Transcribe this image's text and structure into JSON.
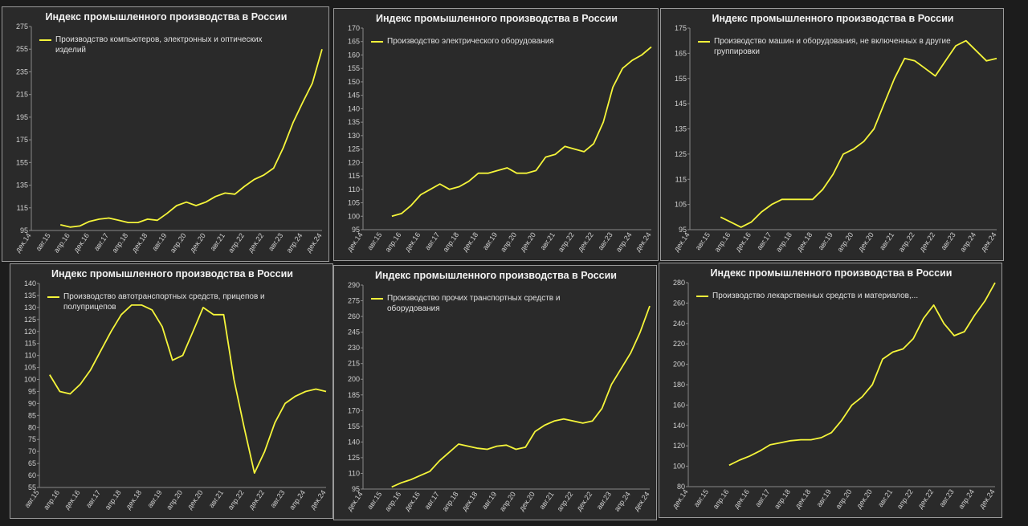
{
  "chart_data": [
    {
      "type": "line",
      "title": "Индекс промышленного производства в России",
      "categories": [
        "дек.14",
        null,
        "авг.15",
        null,
        "апр.16",
        null,
        "дек.16",
        null,
        "авг.17",
        null,
        "апр.18",
        null,
        "дек.18",
        null,
        "авг.19",
        null,
        "апр.20",
        null,
        "дек.20",
        null,
        "авг.21",
        null,
        "апр.22",
        null,
        "дек.22",
        null,
        "авг.23",
        null,
        "апр.24",
        null,
        "дек.24"
      ],
      "series": [
        {
          "name": "Производство компьютеров, электронных и оптических изделий",
          "color": "#f5f53a",
          "values": [
            null,
            null,
            null,
            100,
            98,
            99,
            103,
            105,
            106,
            104,
            102,
            102,
            105,
            104,
            110,
            117,
            120,
            117,
            120,
            125,
            128,
            127,
            134,
            140,
            144,
            150,
            168,
            190,
            208,
            225,
            255
          ]
        }
      ],
      "ylim": [
        95,
        275
      ],
      "yticks": [
        95,
        115,
        135,
        155,
        175,
        195,
        215,
        235,
        255,
        275
      ],
      "grid": false
    },
    {
      "type": "line",
      "title": "Индекс промышленного производства в России",
      "categories": [
        "дек.14",
        null,
        "авг.15",
        null,
        "апр.16",
        null,
        "дек.16",
        null,
        "авг.17",
        null,
        "апр.18",
        null,
        "дек.18",
        null,
        "авг.19",
        null,
        "апр.20",
        null,
        "дек.20",
        null,
        "авг.21",
        null,
        "апр.22",
        null,
        "дек.22",
        null,
        "авг.23",
        null,
        "апр.24",
        null,
        "дек.24"
      ],
      "series": [
        {
          "name": "Производство электрического оборудования",
          "color": "#f5f53a",
          "values": [
            null,
            null,
            null,
            100,
            101,
            104,
            108,
            110,
            112,
            110,
            111,
            113,
            116,
            116,
            117,
            118,
            116,
            116,
            117,
            122,
            123,
            126,
            125,
            124,
            127,
            135,
            148,
            155,
            158,
            160,
            163
          ]
        }
      ],
      "ylim": [
        95,
        170
      ],
      "yticks": [
        95,
        100,
        105,
        110,
        115,
        120,
        125,
        130,
        135,
        140,
        145,
        150,
        155,
        160,
        165,
        170
      ],
      "grid": false
    },
    {
      "type": "line",
      "title": "Индекс промышленного производства в России",
      "categories": [
        "дек.14",
        null,
        "авг.15",
        null,
        "апр.16",
        null,
        "дек.16",
        null,
        "авг.17",
        null,
        "апр.18",
        null,
        "дек.18",
        null,
        "авг.19",
        null,
        "апр.20",
        null,
        "дек.20",
        null,
        "авг.21",
        null,
        "апр.22",
        null,
        "дек.22",
        null,
        "авг.23",
        null,
        "апр.24",
        null,
        "дек.24"
      ],
      "series": [
        {
          "name": "Производство машин и оборудования, не включенных в другие группировки",
          "color": "#f5f53a",
          "values": [
            null,
            null,
            null,
            100,
            98,
            96,
            98,
            102,
            105,
            107,
            107,
            107,
            107,
            111,
            117,
            125,
            127,
            130,
            135,
            145,
            155,
            163,
            162,
            159,
            156,
            162,
            168,
            170,
            166,
            162,
            163
          ]
        }
      ],
      "ylim": [
        95,
        175
      ],
      "yticks": [
        95,
        105,
        115,
        125,
        135,
        145,
        155,
        165,
        175
      ],
      "grid": false
    },
    {
      "type": "line",
      "title": "Индекс промышленного производства в России",
      "categories": [
        "авг.15",
        null,
        "апр.16",
        null,
        "дек.16",
        null,
        "авг.17",
        null,
        "апр.18",
        null,
        "дек.18",
        null,
        "авг.19",
        null,
        "апр.20",
        null,
        "дек.20",
        null,
        "авг.21",
        null,
        "апр.22",
        null,
        "дек.22",
        null,
        "авг.23",
        null,
        "апр.24",
        null,
        "дек.24"
      ],
      "series": [
        {
          "name": "Производство автотранспортных средств, прицепов и полуприцепов",
          "color": "#f5f53a",
          "values": [
            null,
            102,
            95,
            94,
            98,
            104,
            112,
            120,
            127,
            131,
            131,
            129,
            122,
            108,
            110,
            120,
            130,
            127,
            127,
            100,
            80,
            61,
            70,
            82,
            90,
            93,
            95,
            96,
            95
          ]
        }
      ],
      "ylim": [
        55,
        140
      ],
      "yticks": [
        55,
        60,
        65,
        70,
        75,
        80,
        85,
        90,
        95,
        100,
        105,
        110,
        115,
        120,
        125,
        130,
        135,
        140
      ],
      "grid": false
    },
    {
      "type": "line",
      "title": "Индекс промышленного производства в России",
      "categories": [
        "дек.14",
        null,
        "авг.15",
        null,
        "апр.16",
        null,
        "дек.16",
        null,
        "авг.17",
        null,
        "апр.18",
        null,
        "дек.18",
        null,
        "авг.19",
        null,
        "апр.20",
        null,
        "дек.20",
        null,
        "авг.21",
        null,
        "апр.22",
        null,
        "дек.22",
        null,
        "авг.23",
        null,
        "апр.24",
        null,
        "дек.24"
      ],
      "series": [
        {
          "name": "Производство прочих транспортных средств и оборудования",
          "color": "#f5f53a",
          "values": [
            null,
            null,
            null,
            97,
            101,
            104,
            108,
            112,
            122,
            130,
            138,
            136,
            134,
            133,
            136,
            137,
            133,
            135,
            150,
            156,
            160,
            162,
            160,
            158,
            160,
            172,
            195,
            210,
            225,
            245,
            270
          ]
        }
      ],
      "ylim": [
        95,
        290
      ],
      "yticks": [
        95,
        110,
        125,
        140,
        155,
        170,
        185,
        200,
        215,
        230,
        245,
        260,
        275,
        290
      ],
      "grid": false
    },
    {
      "type": "line",
      "title": "Индекс промышленного производства в России",
      "categories": [
        "дек.14",
        null,
        "авг.15",
        null,
        "апр.16",
        null,
        "дек.16",
        null,
        "авг.17",
        null,
        "апр.18",
        null,
        "дек.18",
        null,
        "авг.19",
        null,
        "апр.20",
        null,
        "дек.20",
        null,
        "авг.21",
        null,
        "апр.22",
        null,
        "дек.22",
        null,
        "авг.23",
        null,
        "апр.24",
        null,
        "дек.24"
      ],
      "series": [
        {
          "name": "Производство лекарственных средств и материалов,...",
          "color": "#f5f53a",
          "values": [
            null,
            null,
            null,
            null,
            101,
            106,
            110,
            115,
            121,
            123,
            125,
            126,
            126,
            128,
            133,
            145,
            160,
            168,
            180,
            205,
            212,
            215,
            225,
            245,
            258,
            240,
            228,
            232,
            248,
            262,
            280
          ]
        }
      ],
      "ylim": [
        80,
        280
      ],
      "yticks": [
        80,
        100,
        120,
        140,
        160,
        180,
        200,
        220,
        240,
        260,
        280
      ],
      "grid": false
    }
  ]
}
